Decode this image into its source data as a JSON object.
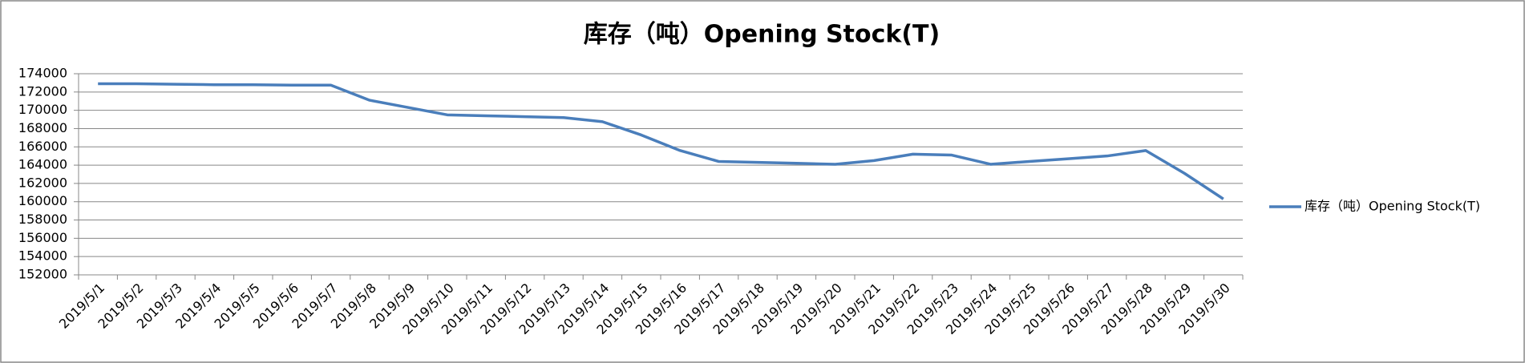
{
  "chart_data": {
    "type": "line",
    "title": "库存（吨）Opening Stock(T)",
    "categories": [
      "2019/5/1",
      "2019/5/2",
      "2019/5/3",
      "2019/5/4",
      "2019/5/5",
      "2019/5/6",
      "2019/5/7",
      "2019/5/8",
      "2019/5/9",
      "2019/5/10",
      "2019/5/11",
      "2019/5/12",
      "2019/5/13",
      "2019/5/14",
      "2019/5/15",
      "2019/5/16",
      "2019/5/17",
      "2019/5/18",
      "2019/5/19",
      "2019/5/20",
      "2019/5/21",
      "2019/5/22",
      "2019/5/23",
      "2019/5/24",
      "2019/5/25",
      "2019/5/26",
      "2019/5/27",
      "2019/5/28",
      "2019/5/29",
      "2019/5/30"
    ],
    "series": [
      {
        "name": "库存（吨）Opening Stock(T)",
        "color": "#4a7ebb",
        "values": [
          172900,
          172900,
          172850,
          172800,
          172800,
          172750,
          172750,
          171100,
          170300,
          169500,
          169400,
          169300,
          169200,
          168750,
          167300,
          165600,
          164400,
          164300,
          164200,
          164100,
          164500,
          165200,
          165100,
          164100,
          164400,
          164700,
          165000,
          165600,
          163100,
          160300
        ]
      }
    ],
    "ylim": [
      152000,
      174000
    ],
    "yticks": [
      152000,
      154000,
      156000,
      158000,
      160000,
      162000,
      164000,
      166000,
      168000,
      170000,
      172000,
      174000
    ],
    "grid": true,
    "legend": "right"
  }
}
